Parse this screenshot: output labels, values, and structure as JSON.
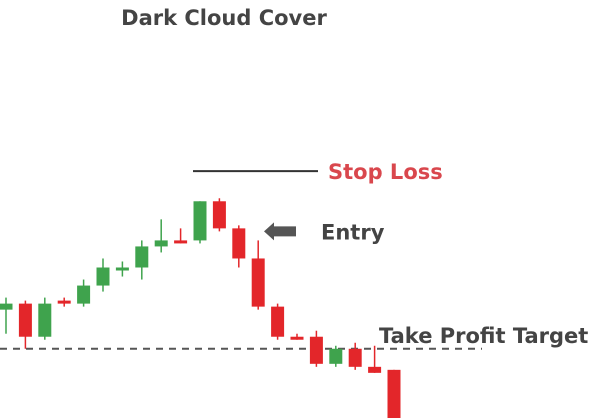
{
  "chart_data": {
    "type": "candlestick",
    "title": "Dark Cloud Cover",
    "xlabel": "",
    "ylabel": "",
    "ylim": [
      0,
      100
    ],
    "grid": false,
    "colors": {
      "up": "#3fa34d",
      "down": "#e3262a",
      "stop_loss": "#d9474d",
      "text": "#444444"
    },
    "candles": [
      {
        "o": 36,
        "h": 40,
        "l": 28,
        "c": 38
      },
      {
        "o": 38,
        "h": 39,
        "l": 23,
        "c": 27
      },
      {
        "o": 27,
        "h": 40,
        "l": 26,
        "c": 38
      },
      {
        "o": 39,
        "h": 40,
        "l": 37,
        "c": 38
      },
      {
        "o": 38,
        "h": 46,
        "l": 37,
        "c": 44
      },
      {
        "o": 44,
        "h": 53,
        "l": 42,
        "c": 50
      },
      {
        "o": 49,
        "h": 52,
        "l": 47,
        "c": 50
      },
      {
        "o": 50,
        "h": 59,
        "l": 46,
        "c": 57
      },
      {
        "o": 57,
        "h": 66,
        "l": 55,
        "c": 59
      },
      {
        "o": 59,
        "h": 63,
        "l": 58,
        "c": 58
      },
      {
        "o": 59,
        "h": 72,
        "l": 58,
        "c": 72
      },
      {
        "o": 72,
        "h": 73,
        "l": 62,
        "c": 63
      },
      {
        "o": 63,
        "h": 64,
        "l": 50,
        "c": 53
      },
      {
        "o": 53,
        "h": 59,
        "l": 36,
        "c": 37
      },
      {
        "o": 37,
        "h": 38,
        "l": 26,
        "c": 27
      },
      {
        "o": 27,
        "h": 28,
        "l": 26,
        "c": 26
      },
      {
        "o": 27,
        "h": 29,
        "l": 17,
        "c": 18
      },
      {
        "o": 18,
        "h": 24,
        "l": 17,
        "c": 23
      },
      {
        "o": 23,
        "h": 25,
        "l": 16,
        "c": 17
      },
      {
        "o": 17,
        "h": 24,
        "l": 15,
        "c": 15
      },
      {
        "o": 16,
        "h": 16,
        "l": 0,
        "c": 0
      }
    ],
    "annotations": {
      "stop_loss": {
        "label": "Stop Loss",
        "y": 82
      },
      "entry": {
        "label": "Entry",
        "y": 62
      },
      "take_profit": {
        "label": "Take Profit Target",
        "y": 23
      }
    }
  }
}
